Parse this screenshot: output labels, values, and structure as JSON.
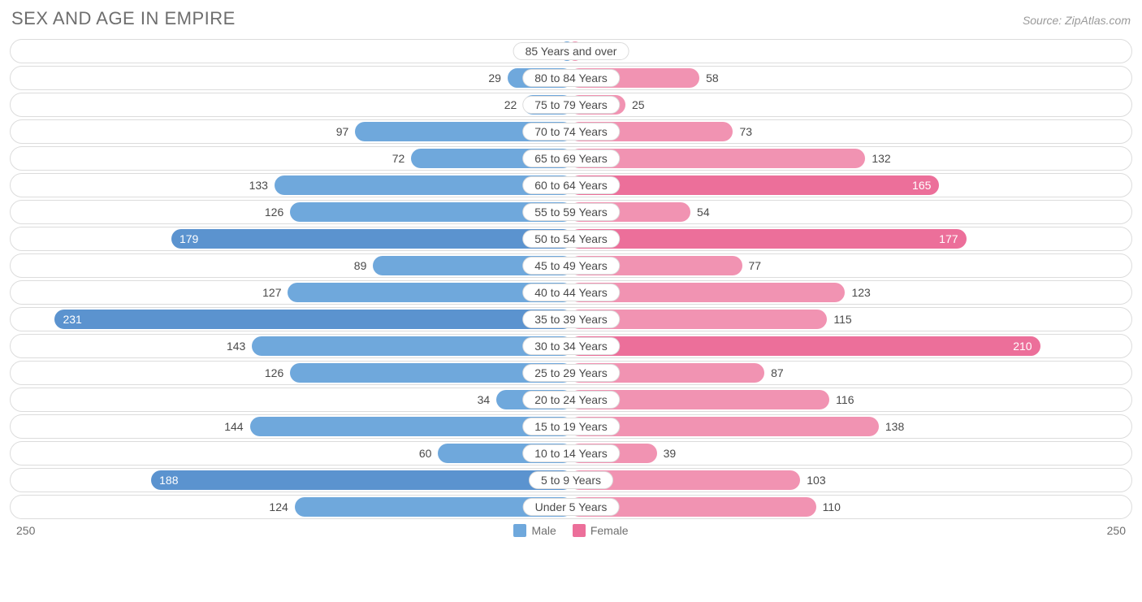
{
  "title": "SEX AND AGE IN EMPIRE",
  "source": "Source: ZipAtlas.com",
  "chart": {
    "type": "population-pyramid",
    "axis_max": 250,
    "axis_label_left": "250",
    "axis_label_right": "250",
    "inside_label_threshold": 160,
    "colors": {
      "male_fill": "#6fa8dc",
      "male_dark": "#5b93cf",
      "female_fill": "#f193b2",
      "female_dark": "#ec6f9a",
      "track_border": "#dcdcdc",
      "text": "#4a4a4a",
      "text_inside": "#ffffff",
      "title_text": "#6e6e6e",
      "source_text": "#9a9a9a",
      "background": "#ffffff"
    },
    "legend": [
      {
        "label": "Male",
        "color": "#6fa8dc"
      },
      {
        "label": "Female",
        "color": "#ec6f9a"
      }
    ],
    "rows": [
      {
        "label": "85 Years and over",
        "male": 0,
        "female": 0
      },
      {
        "label": "80 to 84 Years",
        "male": 29,
        "female": 58
      },
      {
        "label": "75 to 79 Years",
        "male": 22,
        "female": 25
      },
      {
        "label": "70 to 74 Years",
        "male": 97,
        "female": 73
      },
      {
        "label": "65 to 69 Years",
        "male": 72,
        "female": 132
      },
      {
        "label": "60 to 64 Years",
        "male": 133,
        "female": 165
      },
      {
        "label": "55 to 59 Years",
        "male": 126,
        "female": 54
      },
      {
        "label": "50 to 54 Years",
        "male": 179,
        "female": 177
      },
      {
        "label": "45 to 49 Years",
        "male": 89,
        "female": 77
      },
      {
        "label": "40 to 44 Years",
        "male": 127,
        "female": 123
      },
      {
        "label": "35 to 39 Years",
        "male": 231,
        "female": 115
      },
      {
        "label": "30 to 34 Years",
        "male": 143,
        "female": 210
      },
      {
        "label": "25 to 29 Years",
        "male": 126,
        "female": 87
      },
      {
        "label": "20 to 24 Years",
        "male": 34,
        "female": 116
      },
      {
        "label": "15 to 19 Years",
        "male": 144,
        "female": 138
      },
      {
        "label": "10 to 14 Years",
        "male": 60,
        "female": 39
      },
      {
        "label": "5 to 9 Years",
        "male": 188,
        "female": 103
      },
      {
        "label": "Under 5 Years",
        "male": 124,
        "female": 110
      }
    ]
  }
}
